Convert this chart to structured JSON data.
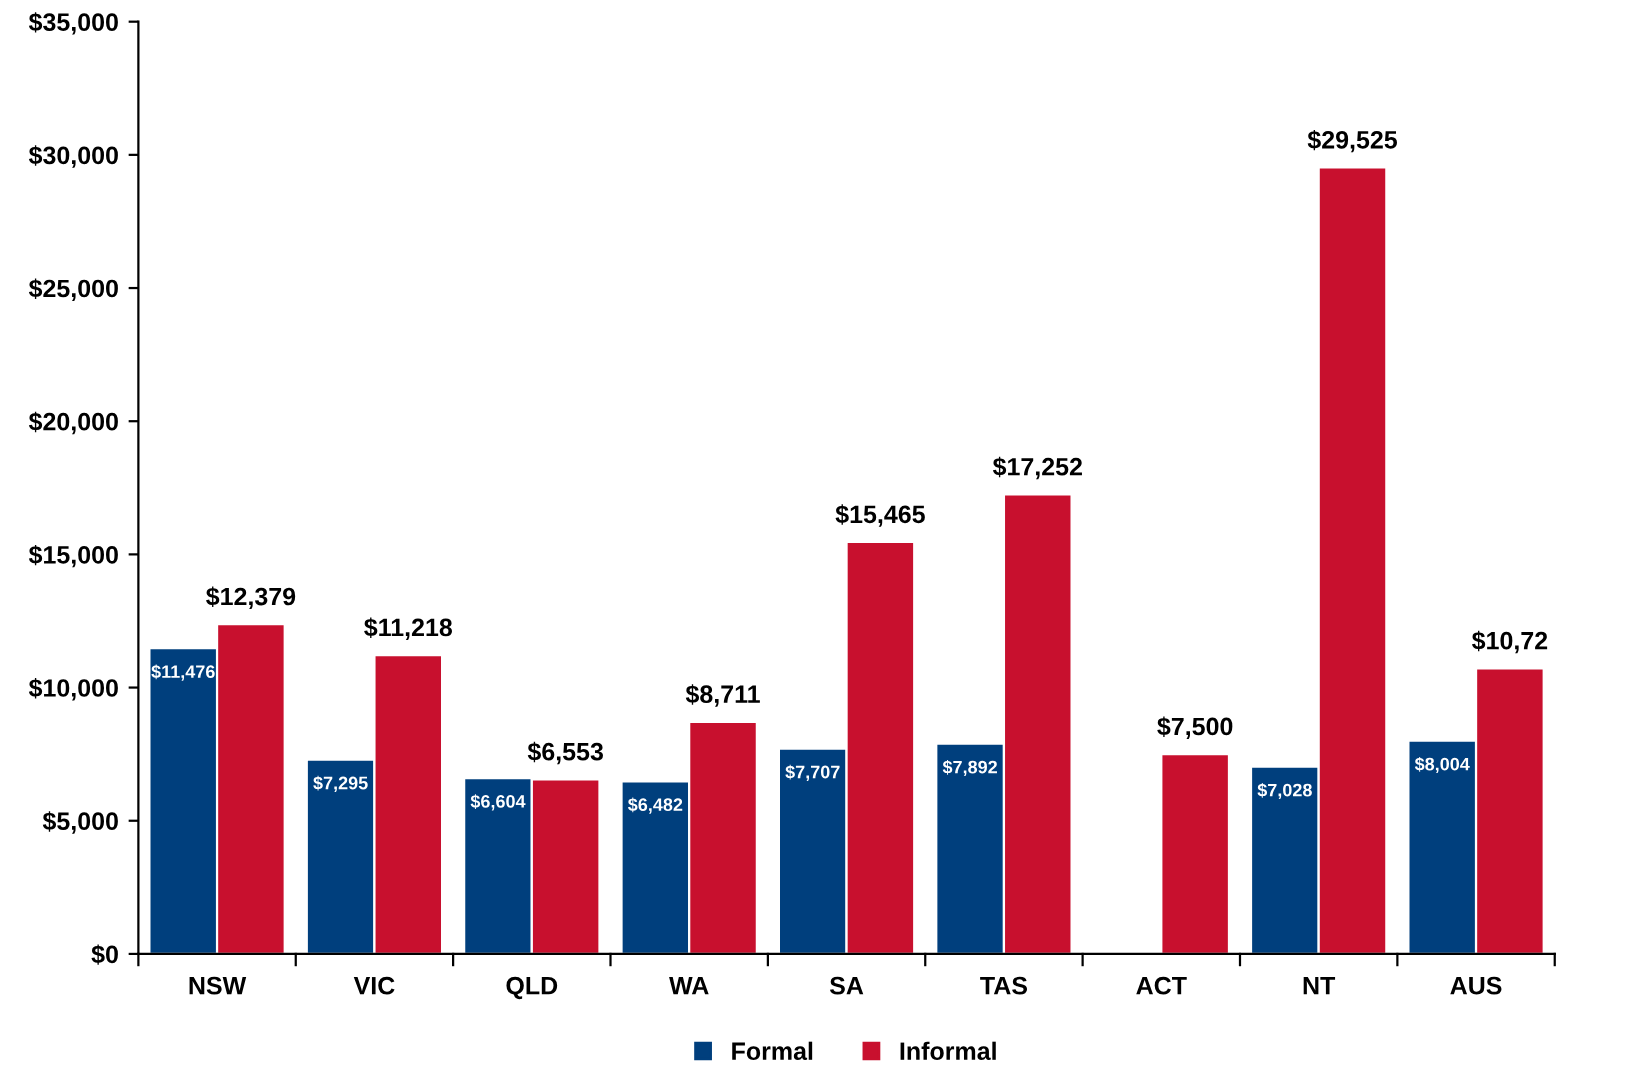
{
  "chart_data": {
    "type": "bar",
    "categories": [
      "NSW",
      "VIC",
      "QLD",
      "WA",
      "SA",
      "TAS",
      "ACT",
      "NT",
      "AUS"
    ],
    "series": [
      {
        "name": "Formal",
        "color": "#003f7d",
        "values": [
          11476,
          7295,
          6604,
          6482,
          7707,
          7892,
          null,
          7028,
          8004
        ],
        "value_labels": [
          "$11,476",
          "$7,295",
          "$6,604",
          "$6,482",
          "$7,707",
          "$7,892",
          null,
          "$7,028",
          "$8,004"
        ]
      },
      {
        "name": "Informal",
        "color": "#c8102e",
        "values": [
          12379,
          11218,
          6553,
          8711,
          15465,
          17252,
          7500,
          29525,
          10720
        ],
        "value_labels": [
          "$12,379",
          "$11,218",
          "$6,553",
          "$8,711",
          "$15,465",
          "$17,252",
          "$7,500",
          "$29,525",
          null
        ]
      }
    ],
    "ylim": [
      0,
      35000
    ],
    "yticks": [
      {
        "value": 0,
        "label": "$0"
      },
      {
        "value": 5000,
        "label": "$5,000"
      },
      {
        "value": 10000,
        "label": "$10,000"
      },
      {
        "value": 15000,
        "label": "$15,000"
      },
      {
        "value": 20000,
        "label": "$20,000"
      },
      {
        "value": 25000,
        "label": "$25,000"
      },
      {
        "value": 30000,
        "label": "$30,000"
      },
      {
        "value": 35000,
        "label": "$35,000"
      }
    ],
    "annotations": [
      {
        "text": "$10,72",
        "x": "AUS",
        "y": 10720
      }
    ],
    "grid": false,
    "legend": "bottom"
  }
}
